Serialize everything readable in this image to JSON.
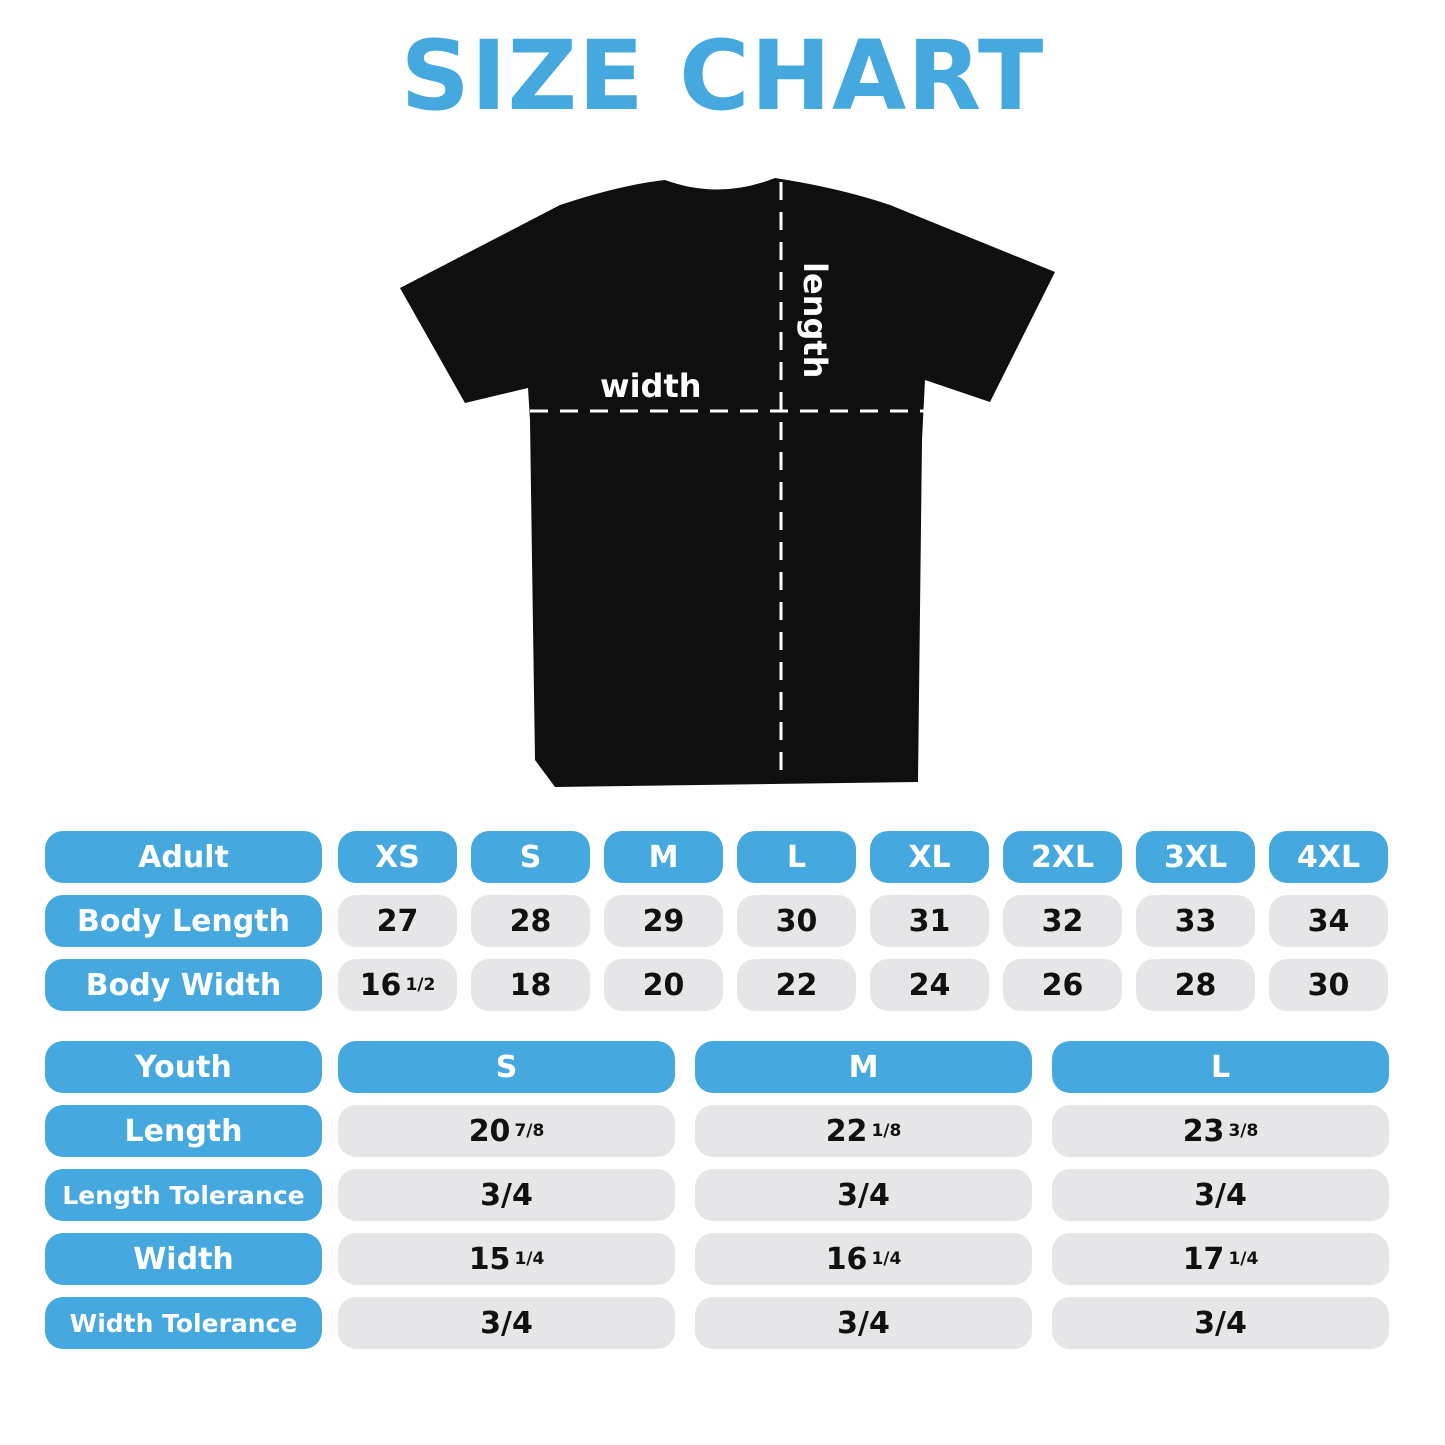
{
  "title": "SIZE CHART",
  "colors": {
    "accent": "#45a9df",
    "cell_bg": "#e6e6e8",
    "shirt": "#0f0f0f"
  },
  "diagram": {
    "width_label": "width",
    "length_label": "length"
  },
  "adult": {
    "header": "Adult",
    "sizes": [
      "XS",
      "S",
      "M",
      "L",
      "XL",
      "2XL",
      "3XL",
      "4XL"
    ],
    "rows": [
      {
        "label": "Body Length",
        "values": [
          {
            "main": "27"
          },
          {
            "main": "28"
          },
          {
            "main": "29"
          },
          {
            "main": "30"
          },
          {
            "main": "31"
          },
          {
            "main": "32"
          },
          {
            "main": "33"
          },
          {
            "main": "34"
          }
        ]
      },
      {
        "label": "Body Width",
        "values": [
          {
            "main": "16",
            "frac": "1/2"
          },
          {
            "main": "18"
          },
          {
            "main": "20"
          },
          {
            "main": "22"
          },
          {
            "main": "24"
          },
          {
            "main": "26"
          },
          {
            "main": "28"
          },
          {
            "main": "30"
          }
        ]
      }
    ]
  },
  "youth": {
    "header": "Youth",
    "sizes": [
      "S",
      "M",
      "L"
    ],
    "rows": [
      {
        "label": "Length",
        "values": [
          {
            "main": "20",
            "frac": "7/8"
          },
          {
            "main": "22",
            "frac": "1/8"
          },
          {
            "main": "23",
            "frac": "3/8"
          }
        ]
      },
      {
        "label": "Length Tolerance",
        "values": [
          {
            "main": "3/4"
          },
          {
            "main": "3/4"
          },
          {
            "main": "3/4"
          }
        ]
      },
      {
        "label": "Width",
        "values": [
          {
            "main": "15",
            "frac": "1/4"
          },
          {
            "main": "16",
            "frac": "1/4"
          },
          {
            "main": "17",
            "frac": "1/4"
          }
        ]
      },
      {
        "label": "Width Tolerance",
        "values": [
          {
            "main": "3/4"
          },
          {
            "main": "3/4"
          },
          {
            "main": "3/4"
          }
        ]
      }
    ]
  }
}
